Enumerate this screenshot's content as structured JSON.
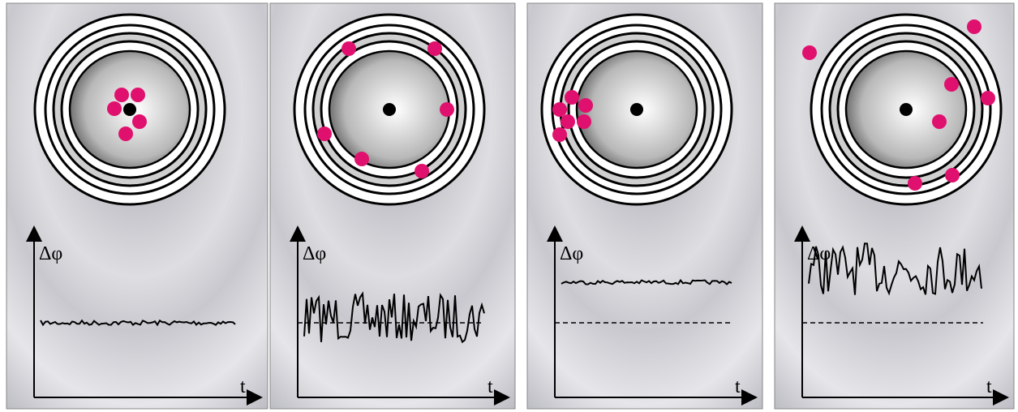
{
  "panels": [
    {
      "y_label": "Δφ",
      "x_label": "t"
    },
    {
      "y_label": "Δφ",
      "x_label": "t"
    },
    {
      "y_label": "Δφ",
      "x_label": "t"
    },
    {
      "y_label": "Δφ",
      "x_label": "t"
    }
  ]
}
